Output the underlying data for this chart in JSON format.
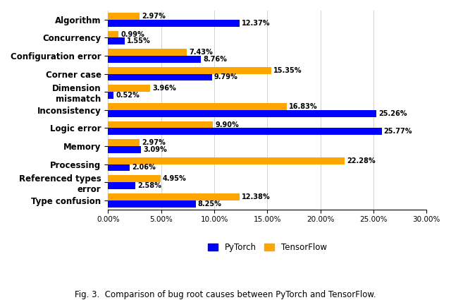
{
  "categories": [
    "Algorithm",
    "Concurrency",
    "Configuration error",
    "Corner case",
    "Dimension\nmismatch",
    "Inconsistency",
    "Logic error",
    "Memory",
    "Processing",
    "Referenced types\nerror",
    "Type confusion"
  ],
  "pytorch": [
    12.37,
    1.55,
    8.76,
    9.79,
    0.52,
    25.26,
    25.77,
    3.09,
    2.06,
    2.58,
    8.25
  ],
  "tensorflow": [
    2.97,
    0.99,
    7.43,
    15.35,
    3.96,
    16.83,
    9.9,
    2.97,
    22.28,
    4.95,
    12.38
  ],
  "pytorch_labels": [
    "12.37%",
    "1.55%",
    "8.76%",
    "9.79%",
    "0.52%",
    "25.26%",
    "25.77%",
    "3.09%",
    "2.06%",
    "2.58%",
    "8.25%"
  ],
  "tensorflow_labels": [
    "2.97%",
    "0.99%",
    "7.43%",
    "15.35%",
    "3.96%",
    "16.83%",
    "9.90%",
    "2.97%",
    "22.28%",
    "4.95%",
    "12.38%"
  ],
  "pytorch_color": "#0000FF",
  "tensorflow_color": "#FFA500",
  "xlim": [
    0,
    30
  ],
  "xlabel_ticks": [
    0,
    5,
    10,
    15,
    20,
    25,
    30
  ],
  "xlabel_tick_labels": [
    "0.00%",
    "5.00%",
    "10.00%",
    "15.00%",
    "20.00%",
    "25.00%",
    "30.00%"
  ],
  "legend_pytorch": "PyTorch",
  "legend_tensorflow": "TensorFlow",
  "caption": "Fig. 3.  Comparison of bug root causes between PyTorch and TensorFlow.",
  "bar_height": 0.38,
  "label_fontsize": 7.0,
  "category_fontsize": 8.5,
  "tick_fontsize": 7.5,
  "caption_fontsize": 8.5
}
